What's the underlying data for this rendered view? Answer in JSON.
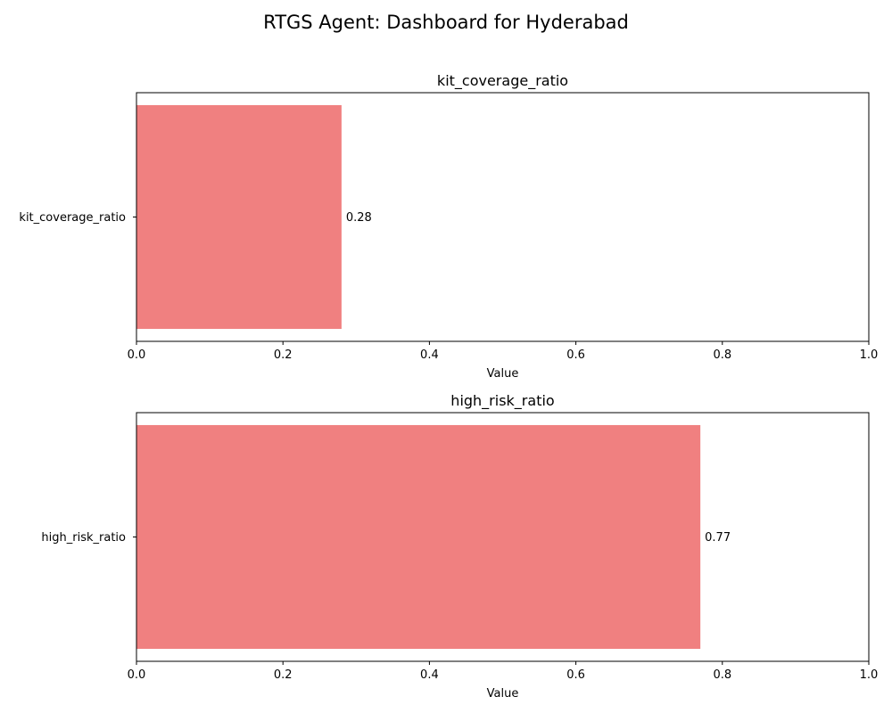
{
  "figure": {
    "title": "RTGS Agent: Dashboard for Hyderabad"
  },
  "chart_data": [
    {
      "type": "bar",
      "orientation": "horizontal",
      "title": "kit_coverage_ratio",
      "categories": [
        "kit_coverage_ratio"
      ],
      "values": [
        0.28
      ],
      "value_labels": [
        "0.28"
      ],
      "xlabel": "Value",
      "ylabel": "",
      "xlim": [
        0,
        1.0
      ],
      "xticks": [
        "0.0",
        "0.2",
        "0.4",
        "0.6",
        "0.8",
        "1.0"
      ],
      "bar_color": "#f08080",
      "grid": false
    },
    {
      "type": "bar",
      "orientation": "horizontal",
      "title": "high_risk_ratio",
      "categories": [
        "high_risk_ratio"
      ],
      "values": [
        0.77
      ],
      "value_labels": [
        "0.77"
      ],
      "xlabel": "Value",
      "ylabel": "",
      "xlim": [
        0,
        1.0
      ],
      "xticks": [
        "0.0",
        "0.2",
        "0.4",
        "0.6",
        "0.8",
        "1.0"
      ],
      "bar_color": "#f08080",
      "grid": false
    }
  ]
}
